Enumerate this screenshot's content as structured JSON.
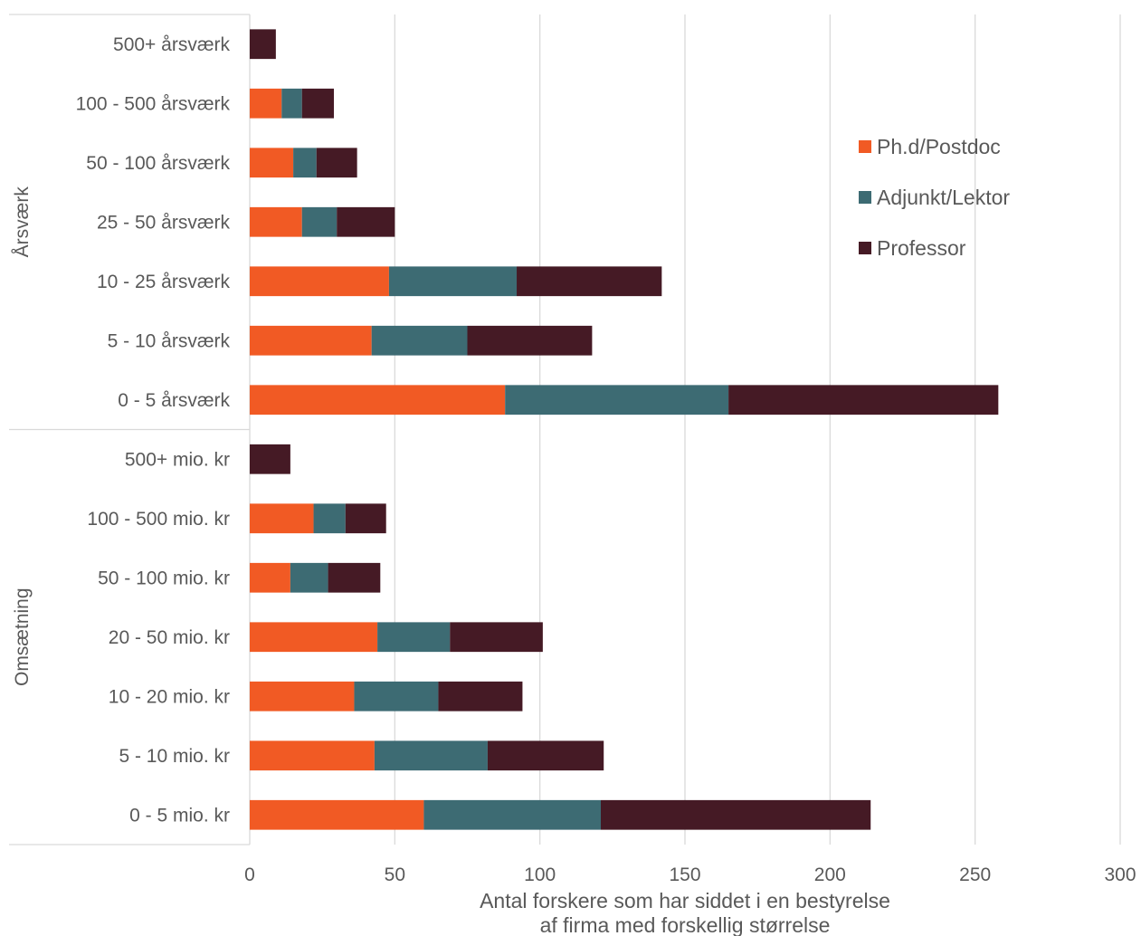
{
  "chart_data": {
    "type": "bar",
    "orientation": "horizontal",
    "stacked": true,
    "groups": [
      {
        "label": "Årsværk",
        "categories": [
          "500+ årsværk",
          "100 - 500 årsværk",
          "50 - 100 årsværk",
          "25 - 50 årsværk",
          "10 - 25 årsværk",
          "5 - 10 årsværk",
          "0 - 5 årsværk"
        ]
      },
      {
        "label": "Omsætning",
        "categories": [
          "500+ mio. kr",
          "100 - 500 mio. kr",
          "50 - 100 mio. kr",
          "20 - 50 mio. kr",
          "10 - 20 mio. kr",
          "5 - 10 mio. kr",
          "0 - 5 mio. kr"
        ]
      }
    ],
    "series": [
      {
        "name": "Ph.d/Postdoc",
        "color": "#F15A24",
        "values": [
          0,
          11,
          15,
          18,
          48,
          42,
          88,
          0,
          22,
          14,
          44,
          36,
          43,
          60
        ]
      },
      {
        "name": "Adjunkt/Lektor",
        "color": "#3D6B73",
        "values": [
          0,
          7,
          8,
          12,
          44,
          33,
          77,
          0,
          11,
          13,
          25,
          29,
          39,
          61
        ]
      },
      {
        "name": "Professor",
        "color": "#451A25",
        "values": [
          9,
          11,
          14,
          20,
          50,
          43,
          93,
          14,
          14,
          18,
          32,
          29,
          40,
          93
        ]
      }
    ],
    "xlabel": [
      "Antal forskere som har siddet i en bestyrelse",
      "af firma med forskellig størrelse"
    ],
    "xlim": [
      0,
      300
    ],
    "xticks": [
      0,
      50,
      100,
      150,
      200,
      250,
      300
    ],
    "grid": "vertical",
    "legend": "right"
  }
}
